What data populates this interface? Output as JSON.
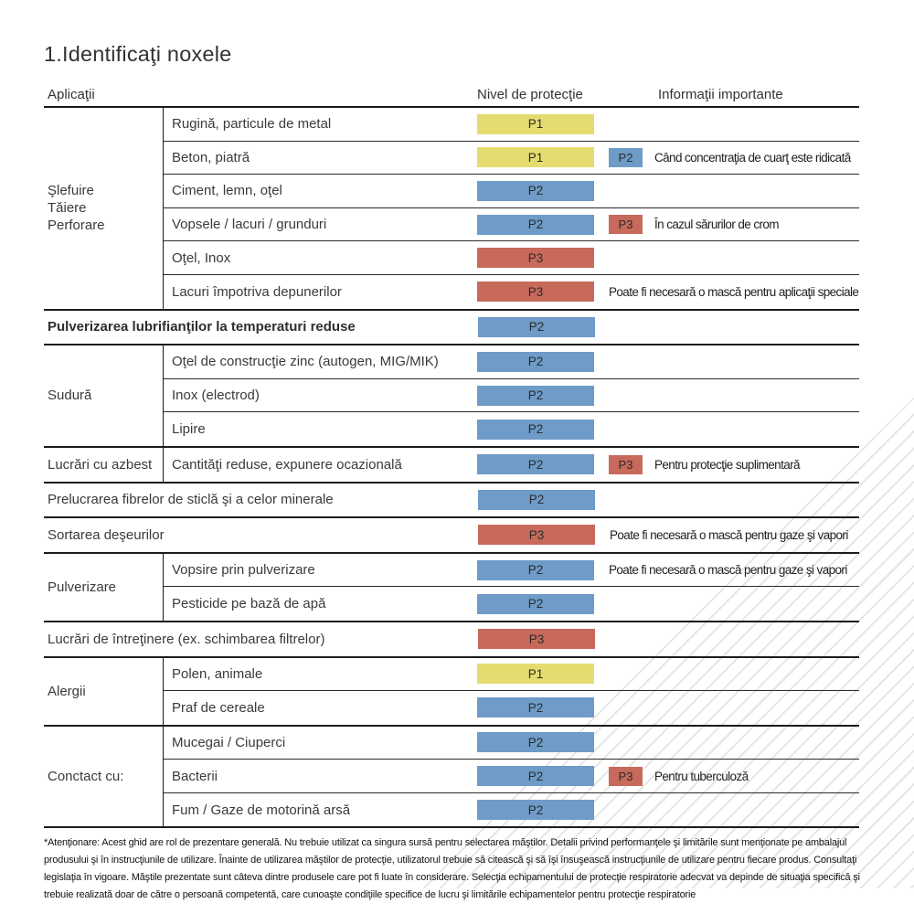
{
  "page": {
    "title": "1.Identificaţi noxele"
  },
  "table": {
    "headers": {
      "applications": "Aplicaţii",
      "protection": "Nivel de protecţie",
      "info": "Informaţii importante"
    },
    "levels": {
      "P1": "#e5dc6f",
      "P2": "#6e9bc8",
      "P3": "#c86a5b"
    },
    "groups": [
      {
        "category": "Şlefuire\nTăiere\nPerforare",
        "rows": [
          {
            "app": "Rugină, particule de metal",
            "level": "P1"
          },
          {
            "app": "Beton, piatră",
            "level": "P1",
            "extra": "P2",
            "note": "Când concentraţia de cuarţ este ridicată"
          },
          {
            "app": "Ciment, lemn, oţel",
            "level": "P2"
          },
          {
            "app": "Vopsele / lacuri / grunduri",
            "level": "P2",
            "extra": "P3",
            "note": "În cazul sărurilor de crom"
          },
          {
            "app": "Oţel, Inox",
            "level": "P3"
          },
          {
            "app": "Lacuri împotriva depunerilor",
            "level": "P3",
            "note": "Poate fi necesară o mască pentru aplicaţii speciale"
          }
        ]
      },
      {
        "rows": [
          {
            "app": "Pulverizarea lubrifianţilor la temperaturi reduse",
            "level": "P2",
            "bold": true
          }
        ]
      },
      {
        "category": "Sudură",
        "rows": [
          {
            "app": "Oţel de construcţie zinc (autogen, MIG/MIK)",
            "level": "P2"
          },
          {
            "app": "Inox (electrod)",
            "level": "P2"
          },
          {
            "app": "Lipire",
            "level": "P2"
          }
        ]
      },
      {
        "category": "Lucrări cu azbest",
        "rows": [
          {
            "app": "Cantităţi reduse, expunere ocazională",
            "level": "P2",
            "extra": "P3",
            "note": "Pentru protecţie suplimentară"
          }
        ]
      },
      {
        "rows": [
          {
            "app": "Prelucrarea fibrelor de sticlă şi a celor minerale",
            "level": "P2"
          }
        ]
      },
      {
        "rows": [
          {
            "app": "Sortarea deşeurilor",
            "level": "P3",
            "note": "Poate fi necesară o mască pentru gaze şi vapori"
          }
        ]
      },
      {
        "category": "Pulverizare",
        "rows": [
          {
            "app": "Vopsire prin pulverizare",
            "level": "P2",
            "note": "Poate fi necesară o mască pentru gaze şi vapori"
          },
          {
            "app": "Pesticide pe bază de apă",
            "level": "P2"
          }
        ]
      },
      {
        "rows": [
          {
            "app": "Lucrări de întreţinere (ex. schimbarea filtrelor)",
            "level": "P3"
          }
        ]
      },
      {
        "category": "Alergii",
        "rows": [
          {
            "app": "Polen, animale",
            "level": "P1"
          },
          {
            "app": "Praf de cereale",
            "level": "P2"
          }
        ]
      },
      {
        "category": "Conctact cu:",
        "rows": [
          {
            "app": "Mucegai / Ciuperci",
            "level": "P2"
          },
          {
            "app": "Bacterii",
            "level": "P2",
            "extra": "P3",
            "note": "Pentru tuberculoză"
          },
          {
            "app": "Fum / Gaze de motorină arsă",
            "level": "P2"
          }
        ]
      }
    ]
  },
  "footnote": "*Atenţionare: Acest ghid are rol de prezentare generală. Nu trebuie utilizat ca singura sursă pentru selectarea măştilor. Detalii privind performanţele şi limitările sunt menţionate pe ambalajul produsului şi în instrucţiunile de utilizare. Înainte de utilizarea măştilor de protecţie, utilizatorul trebuie să citească şi să îşi însuşească instrucţiunile de utilizare pentru fiecare produs. Consultaţi legislaţia în vigoare. Măştile prezentate sunt câteva dintre produsele care pot fi luate în considerare. Selecţia echipamentului de protecţie respiratorie adecvat va depinde de situaţia specifică şi trebuie realizată doar de către o persoană competentă, care cunoaşte condiţiile specifice de lucru şi limitările echipamentelor pentru protecţie respiratorie"
}
